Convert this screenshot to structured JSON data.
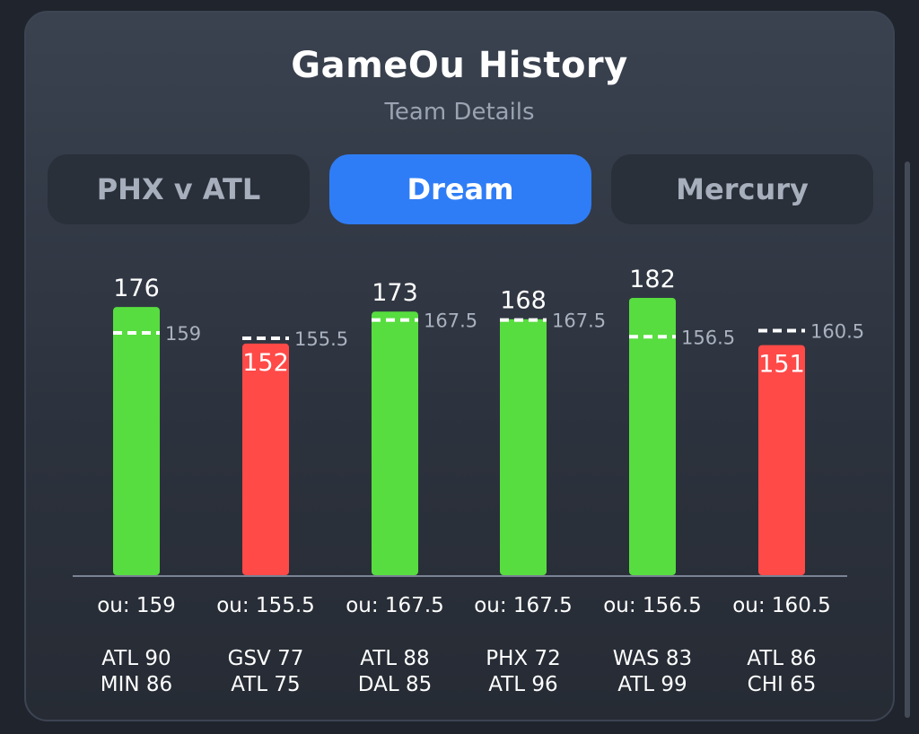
{
  "header": {
    "title": "GameOu History",
    "subtitle": "Team Details"
  },
  "tabs": [
    {
      "label": "PHX v ATL",
      "active": false
    },
    {
      "label": "Dream",
      "active": true
    },
    {
      "label": "Mercury",
      "active": false
    }
  ],
  "colors": {
    "over": "#57dd3f",
    "under": "#ff4a48",
    "accent": "#2f7df6",
    "line": "#ffffff"
  },
  "chart_data": {
    "type": "bar",
    "values": [
      176,
      152,
      173,
      168,
      182,
      151
    ],
    "lines": [
      159,
      155.5,
      167.5,
      167.5,
      156.5,
      160.5
    ],
    "line_labels": [
      "159",
      "155.5",
      "167.5",
      "167.5",
      "156.5",
      "160.5"
    ],
    "ou_labels": [
      "ou: 159",
      "ou: 155.5",
      "ou: 167.5",
      "ou: 167.5",
      "ou: 156.5",
      "ou: 160.5"
    ],
    "results": [
      "over",
      "under",
      "over",
      "over",
      "over",
      "under"
    ],
    "matchups": [
      [
        "ATL 90",
        "MIN 86"
      ],
      [
        "GSV 77",
        "ATL 75"
      ],
      [
        "ATL 88",
        "DAL 85"
      ],
      [
        "PHX 72",
        "ATL 96"
      ],
      [
        "WAS 83",
        "ATL 99"
      ],
      [
        "ATL 86",
        "CHI 65"
      ]
    ],
    "ylim": [
      0,
      189
    ],
    "grid": false,
    "legend": "none"
  }
}
